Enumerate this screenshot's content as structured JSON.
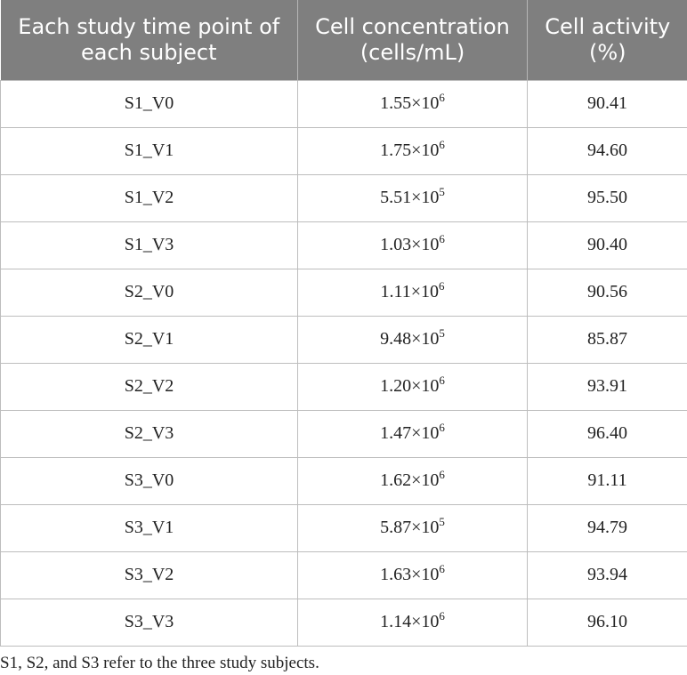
{
  "table": {
    "headers": [
      "Each study time point of each subject",
      "Cell concentration (cells/mL)",
      "Cell activity (%)"
    ],
    "rows": [
      {
        "point": "S1_V0",
        "conc_mantissa": "1.55×10",
        "conc_exp": "6",
        "activity": "90.41"
      },
      {
        "point": "S1_V1",
        "conc_mantissa": "1.75×10",
        "conc_exp": "6",
        "activity": "94.60"
      },
      {
        "point": "S1_V2",
        "conc_mantissa": "5.51×10",
        "conc_exp": "5",
        "activity": "95.50"
      },
      {
        "point": "S1_V3",
        "conc_mantissa": "1.03×10",
        "conc_exp": "6",
        "activity": "90.40"
      },
      {
        "point": "S2_V0",
        "conc_mantissa": "1.11×10",
        "conc_exp": "6",
        "activity": "90.56"
      },
      {
        "point": "S2_V1",
        "conc_mantissa": "9.48×10",
        "conc_exp": "5",
        "activity": "85.87"
      },
      {
        "point": "S2_V2",
        "conc_mantissa": "1.20×10",
        "conc_exp": "6",
        "activity": "93.91"
      },
      {
        "point": "S2_V3",
        "conc_mantissa": "1.47×10",
        "conc_exp": "6",
        "activity": "96.40"
      },
      {
        "point": "S3_V0",
        "conc_mantissa": "1.62×10",
        "conc_exp": "6",
        "activity": "91.11"
      },
      {
        "point": "S3_V1",
        "conc_mantissa": "5.87×10",
        "conc_exp": "5",
        "activity": "94.79"
      },
      {
        "point": "S3_V2",
        "conc_mantissa": "1.63×10",
        "conc_exp": "6",
        "activity": "93.94"
      },
      {
        "point": "S3_V3",
        "conc_mantissa": "1.14×10",
        "conc_exp": "6",
        "activity": "96.10"
      }
    ]
  },
  "footnote": "S1, S2, and S3 refer to the three study subjects.",
  "colors": {
    "header_bg": "#7f7f7f",
    "header_text": "#ffffff",
    "grid": "#bdbdbd"
  }
}
